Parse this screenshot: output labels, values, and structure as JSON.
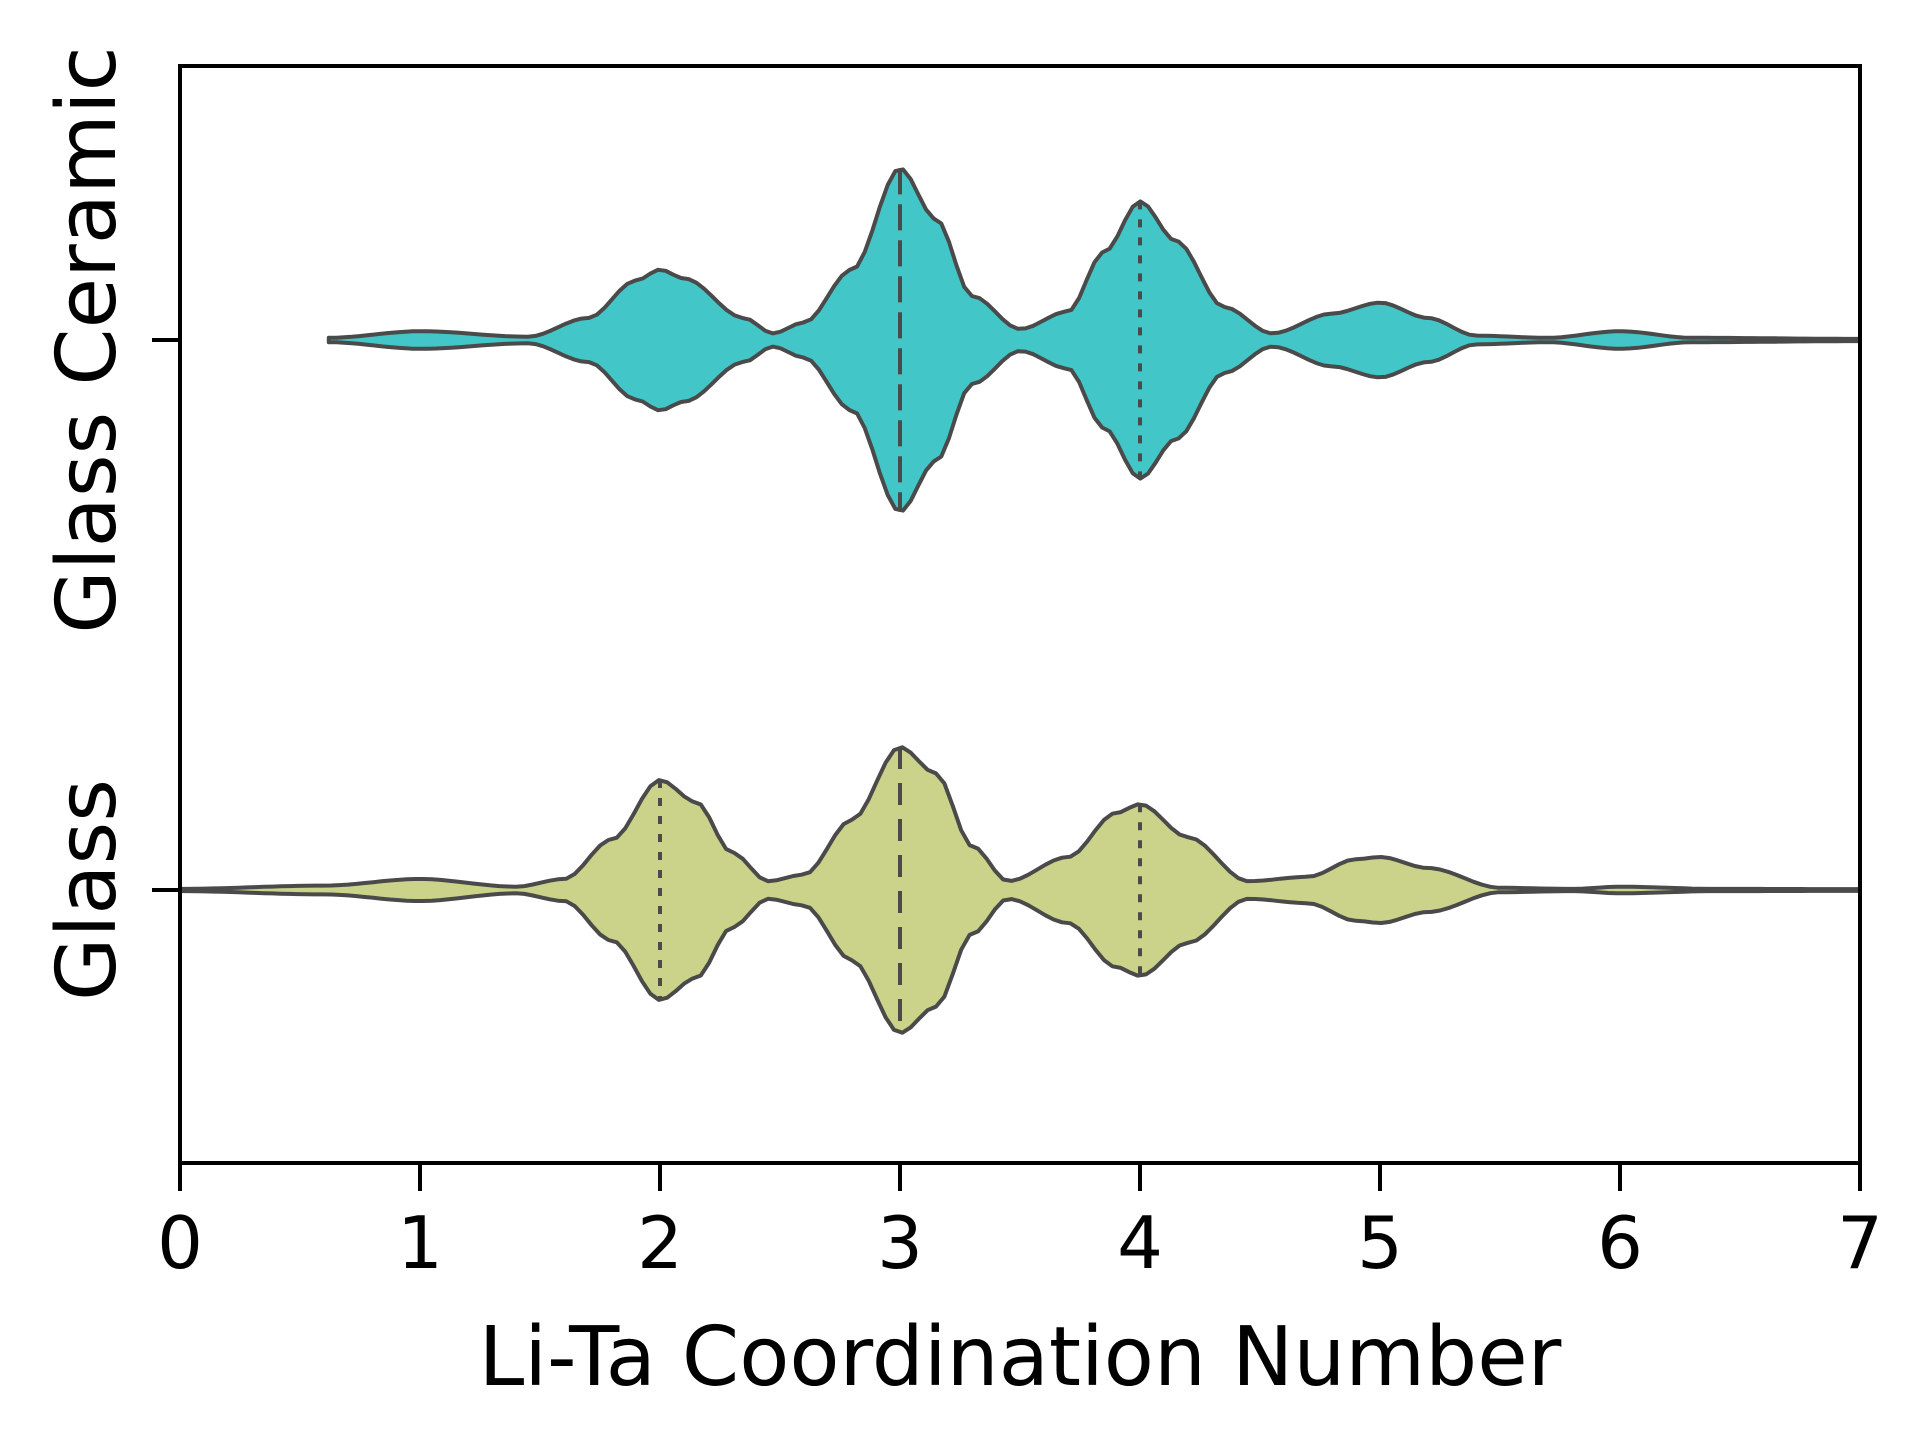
{
  "chart_data": {
    "type": "violin",
    "orientation": "horizontal",
    "xlabel": "Li-Ta Coordination Number",
    "xlim": [
      0,
      7
    ],
    "xticks": [
      "0",
      "1",
      "2",
      "3",
      "4",
      "5",
      "6",
      "7"
    ],
    "categories": [
      "Glass Ceramic",
      "Glass"
    ],
    "series": [
      {
        "name": "Glass Ceramic",
        "color": "#43c6c8",
        "x_start": 0.62,
        "x_end": 7.0,
        "quartiles": {
          "q1": 3.0,
          "median": 3.0,
          "q3": 4.0
        },
        "density": [
          [
            0.62,
            0.01
          ],
          [
            1.0,
            0.04
          ],
          [
            1.45,
            0.015
          ],
          [
            1.7,
            0.1
          ],
          [
            1.9,
            0.27
          ],
          [
            2.0,
            0.32
          ],
          [
            2.1,
            0.28
          ],
          [
            2.35,
            0.1
          ],
          [
            2.47,
            0.03
          ],
          [
            2.6,
            0.08
          ],
          [
            2.8,
            0.32
          ],
          [
            3.0,
            0.78
          ],
          [
            3.15,
            0.55
          ],
          [
            3.3,
            0.2
          ],
          [
            3.5,
            0.05
          ],
          [
            3.7,
            0.13
          ],
          [
            3.85,
            0.4
          ],
          [
            4.0,
            0.63
          ],
          [
            4.15,
            0.45
          ],
          [
            4.35,
            0.15
          ],
          [
            4.55,
            0.03
          ],
          [
            4.8,
            0.12
          ],
          [
            5.0,
            0.17
          ],
          [
            5.2,
            0.1
          ],
          [
            5.4,
            0.02
          ],
          [
            5.7,
            0.01
          ],
          [
            6.0,
            0.04
          ],
          [
            6.3,
            0.01
          ],
          [
            7.0,
            0.005
          ]
        ]
      },
      {
        "name": "Glass",
        "color": "#cbd38a",
        "x_start": 0.0,
        "x_end": 7.0,
        "quartiles": {
          "q1": 2.0,
          "median": 3.0,
          "q3": 4.0
        },
        "density": [
          [
            0.0,
            0.005
          ],
          [
            0.6,
            0.02
          ],
          [
            1.0,
            0.05
          ],
          [
            1.4,
            0.015
          ],
          [
            1.6,
            0.05
          ],
          [
            1.8,
            0.23
          ],
          [
            2.0,
            0.5
          ],
          [
            2.15,
            0.4
          ],
          [
            2.3,
            0.17
          ],
          [
            2.45,
            0.04
          ],
          [
            2.6,
            0.07
          ],
          [
            2.8,
            0.32
          ],
          [
            3.0,
            0.65
          ],
          [
            3.15,
            0.53
          ],
          [
            3.3,
            0.2
          ],
          [
            3.45,
            0.04
          ],
          [
            3.7,
            0.15
          ],
          [
            3.9,
            0.35
          ],
          [
            4.0,
            0.39
          ],
          [
            4.2,
            0.24
          ],
          [
            4.45,
            0.04
          ],
          [
            4.7,
            0.06
          ],
          [
            4.9,
            0.14
          ],
          [
            5.0,
            0.15
          ],
          [
            5.2,
            0.1
          ],
          [
            5.5,
            0.01
          ],
          [
            5.8,
            0.005
          ],
          [
            6.0,
            0.015
          ],
          [
            6.4,
            0.005
          ],
          [
            7.0,
            0.004
          ]
        ]
      }
    ],
    "grid": false,
    "legend": "none"
  }
}
